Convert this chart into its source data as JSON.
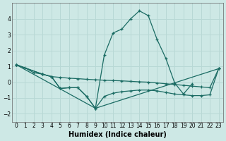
{
  "xlabel": "Humidex (Indice chaleur)",
  "background_color": "#cde8e5",
  "grid_color": "#b8d8d5",
  "line_color": "#1a6b63",
  "xlim": [
    -0.5,
    23.5
  ],
  "ylim": [
    -2.5,
    5.0
  ],
  "yticks": [
    -2,
    -1,
    0,
    1,
    2,
    3,
    4
  ],
  "xticks": [
    0,
    1,
    2,
    3,
    4,
    5,
    6,
    7,
    8,
    9,
    10,
    11,
    12,
    13,
    14,
    15,
    16,
    17,
    18,
    19,
    20,
    21,
    22,
    23
  ],
  "line1_x": [
    0,
    1,
    2,
    3,
    4,
    5,
    6,
    7,
    8,
    9,
    10,
    11,
    12,
    13,
    14,
    15,
    16,
    17,
    18,
    19,
    20
  ],
  "line1_y": [
    1.1,
    0.9,
    0.6,
    0.5,
    0.35,
    -0.4,
    -0.35,
    -0.35,
    -0.9,
    -1.65,
    1.7,
    3.1,
    3.35,
    4.0,
    4.5,
    4.2,
    2.7,
    1.5,
    -0.05,
    -0.75,
    -0.1
  ],
  "line2_x": [
    0,
    3,
    4,
    5,
    6,
    7,
    8,
    9,
    10,
    11,
    12,
    13,
    14,
    15,
    16,
    17,
    18,
    19,
    20,
    21,
    22,
    23
  ],
  "line2_y": [
    1.1,
    0.5,
    0.35,
    0.3,
    0.25,
    0.22,
    0.18,
    0.15,
    0.12,
    0.1,
    0.08,
    0.05,
    0.02,
    0.0,
    -0.05,
    -0.1,
    -0.15,
    -0.2,
    -0.25,
    -0.3,
    -0.35,
    0.85
  ],
  "line3_x": [
    0,
    3,
    4,
    5,
    6,
    7,
    8,
    9,
    10,
    11,
    12,
    13,
    14,
    15,
    16,
    17,
    18,
    19,
    20,
    21,
    22,
    23
  ],
  "line3_y": [
    1.1,
    0.5,
    0.35,
    -0.4,
    -0.35,
    -0.35,
    -0.9,
    -1.65,
    -0.9,
    -0.7,
    -0.6,
    -0.55,
    -0.5,
    -0.5,
    -0.55,
    -0.65,
    -0.75,
    -0.8,
    -0.85,
    -0.85,
    -0.8,
    0.85
  ],
  "line4_x": [
    0,
    9,
    23
  ],
  "line4_y": [
    1.1,
    -1.65,
    0.85
  ]
}
